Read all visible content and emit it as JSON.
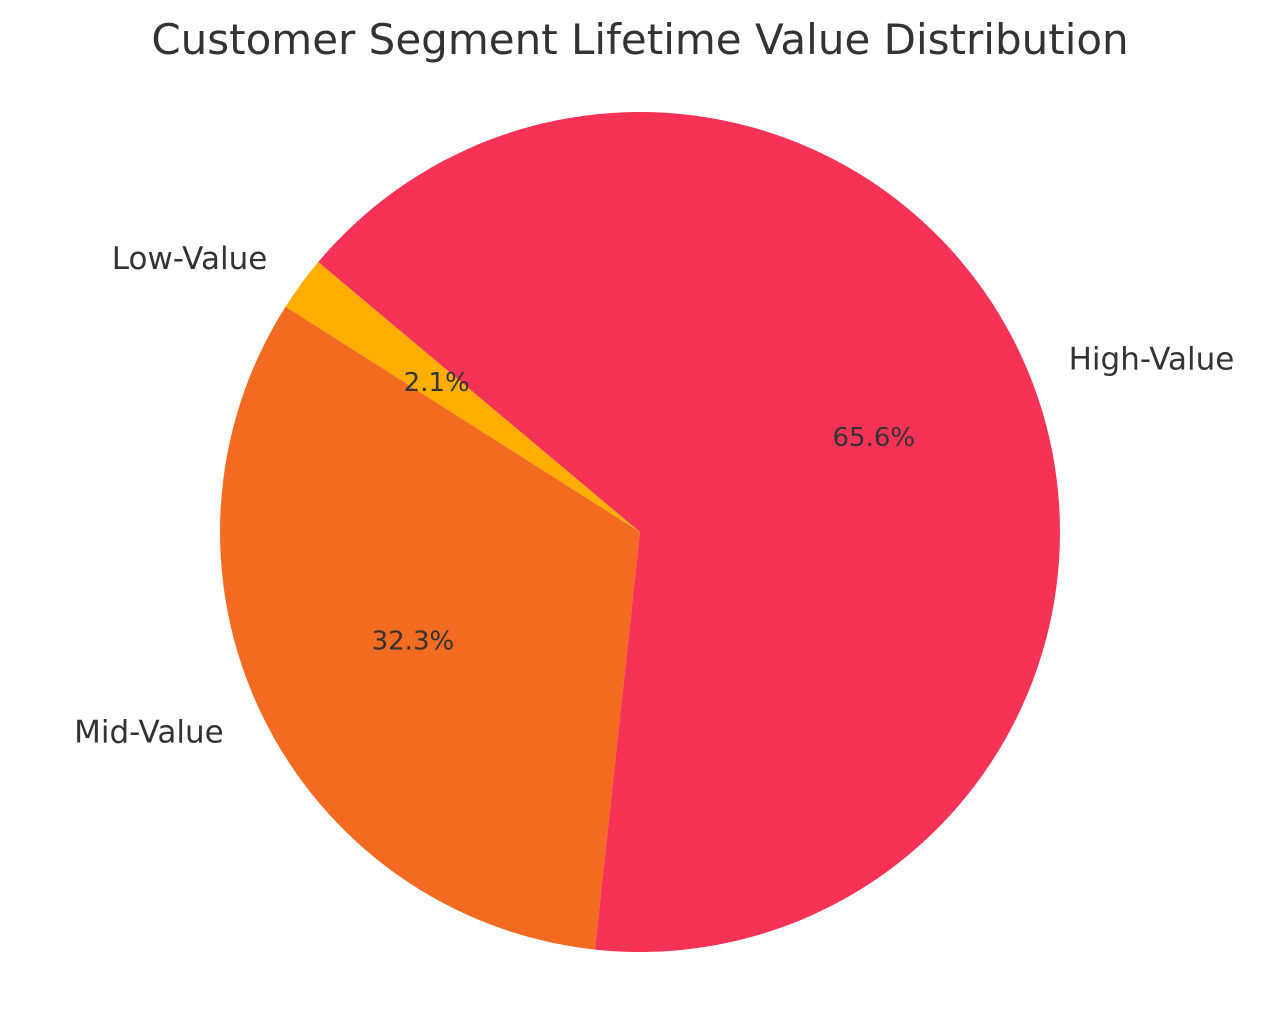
{
  "chart_data": {
    "type": "pie",
    "title": "Customer Segment Lifetime Value Distribution",
    "start_angle_deg": 140,
    "direction": "counterclockwise",
    "slices": [
      {
        "label": "Low-Value",
        "value": 2.1,
        "pct_label": "2.1%",
        "color": "#FFAE00"
      },
      {
        "label": "Mid-Value",
        "value": 32.3,
        "pct_label": "32.3%",
        "color": "#F26B21"
      },
      {
        "label": "High-Value",
        "value": 65.6,
        "pct_label": "65.6%",
        "color": "#F63356"
      }
    ]
  }
}
